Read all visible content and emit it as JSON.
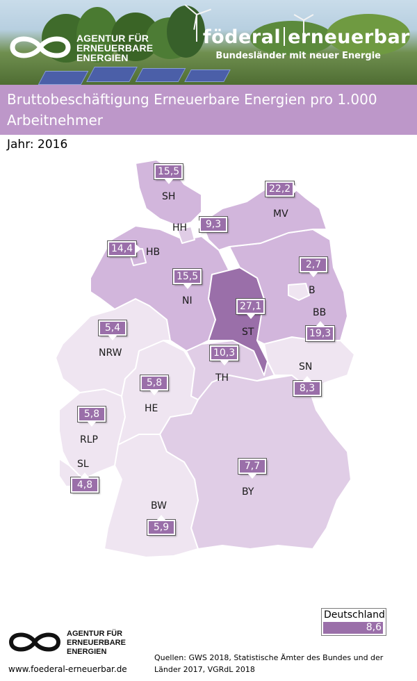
{
  "header": {
    "agentur_lines": [
      "AGENTUR FÜR",
      "ERNEUERBARE",
      "ENERGIEN"
    ],
    "foederal_left": "föderal",
    "foederal_right": "erneuerbar",
    "foederal_sub": "Bundesländer mit neuer Energie"
  },
  "title": "Bruttobeschäftigung Erneuerbare Energien pro 1.000 Arbeitnehmer",
  "year_label": "Jahr: 2016",
  "colors": {
    "title_bar": "#bd97c9",
    "value_box": "#9a6fa9",
    "scale_lowest": "#efe5f1",
    "scale_low": "#e0cde6",
    "scale_mid": "#d2b6dc",
    "scale_high": "#9a6fa9"
  },
  "map": {
    "states": [
      {
        "abbr": "SH",
        "value": "15,5"
      },
      {
        "abbr": "HH",
        "value": "9,3"
      },
      {
        "abbr": "MV",
        "value": "22,2"
      },
      {
        "abbr": "HB",
        "value": "14,4"
      },
      {
        "abbr": "NI",
        "value": "15,5"
      },
      {
        "abbr": "B",
        "value": "2,7"
      },
      {
        "abbr": "BB",
        "value": "19,3"
      },
      {
        "abbr": "ST",
        "value": "27,1"
      },
      {
        "abbr": "NRW",
        "value": "5,4"
      },
      {
        "abbr": "TH",
        "value": "10,3"
      },
      {
        "abbr": "SN",
        "value": "8,3"
      },
      {
        "abbr": "HE",
        "value": "5,8"
      },
      {
        "abbr": "RLP",
        "value": "5,8"
      },
      {
        "abbr": "SL",
        "value": "4,8"
      },
      {
        "abbr": "BY",
        "value": "7,7"
      },
      {
        "abbr": "BW",
        "value": "5,9"
      }
    ]
  },
  "legend": {
    "label": "Deutschland",
    "value": "8,6"
  },
  "footer": {
    "agentur_lines": [
      "AGENTUR FÜR",
      "ERNEUERBARE",
      "ENERGIEN"
    ],
    "website": "www.foederal-erneuerbar.de",
    "sources_line1": "Quellen:   GWS 2018, Statistische Ämter des Bundes und der",
    "sources_line2": "Länder 2017, VGRdL 2018"
  }
}
